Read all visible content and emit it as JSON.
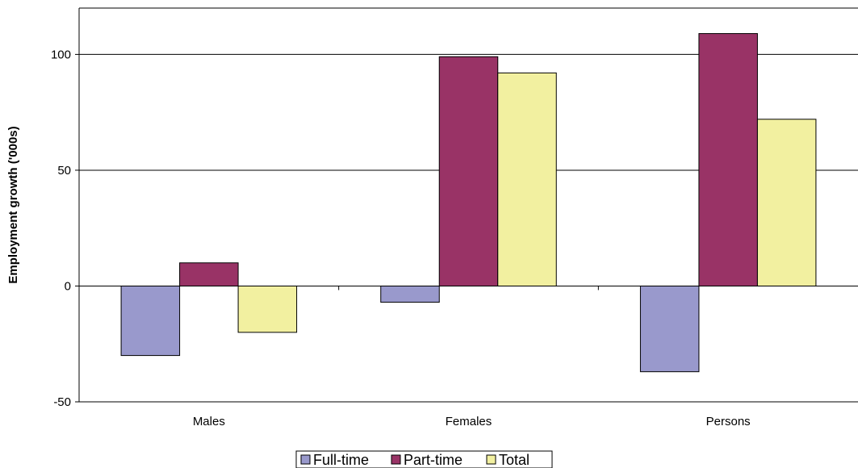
{
  "chart_data": {
    "type": "bar",
    "categories": [
      "Males",
      "Females",
      "Persons"
    ],
    "series": [
      {
        "name": "Full-time",
        "values": [
          -30,
          -7,
          -37
        ],
        "color": "#9999cc"
      },
      {
        "name": "Part-time",
        "values": [
          10,
          99,
          109
        ],
        "color": "#993366"
      },
      {
        "name": "Total",
        "values": [
          -20,
          92,
          72
        ],
        "color": "#f2f0a0"
      }
    ],
    "title": "",
    "xlabel": "",
    "ylabel": "Employment growth ('000s)",
    "ylim": [
      -50,
      120
    ],
    "yticks": [
      -50,
      0,
      50,
      100
    ],
    "grid": true,
    "legend_position": "bottom"
  }
}
